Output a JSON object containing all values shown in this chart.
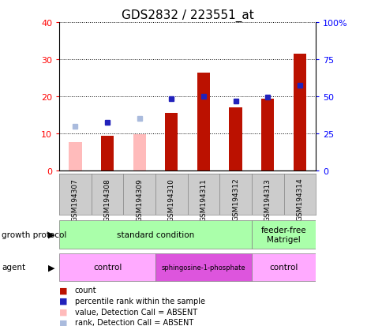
{
  "title": "GDS2832 / 223551_at",
  "samples": [
    "GSM194307",
    "GSM194308",
    "GSM194309",
    "GSM194310",
    "GSM194311",
    "GSM194312",
    "GSM194313",
    "GSM194314"
  ],
  "count_values": [
    null,
    9.5,
    null,
    15.5,
    26.5,
    17.0,
    19.5,
    31.5
  ],
  "count_absent_values": [
    7.8,
    null,
    9.8,
    null,
    null,
    null,
    null,
    null
  ],
  "percentile_values_left": [
    null,
    13.0,
    null,
    19.5,
    20.0,
    18.8,
    19.8,
    23.0
  ],
  "percentile_absent_values_left": [
    12.0,
    null,
    14.0,
    null,
    null,
    null,
    null,
    null
  ],
  "count_color": "#bb1100",
  "count_absent_color": "#ffbbbb",
  "percentile_color": "#2222bb",
  "percentile_absent_color": "#aabbdd",
  "ylim_left": [
    0,
    40
  ],
  "ylim_right": [
    0,
    100
  ],
  "yticks_left": [
    0,
    10,
    20,
    30,
    40
  ],
  "ytick_labels_left": [
    "0",
    "10",
    "20",
    "30",
    "40"
  ],
  "yticks_right": [
    0,
    25,
    50,
    75,
    100
  ],
  "ytick_labels_right": [
    "0",
    "25",
    "50",
    "75",
    "100%"
  ],
  "growth_protocol_groups": [
    {
      "label": "standard condition",
      "start": 0,
      "end": 6,
      "color": "#aaffaa"
    },
    {
      "label": "feeder-free\nMatrigel",
      "start": 6,
      "end": 8,
      "color": "#aaffaa"
    }
  ],
  "agent_groups": [
    {
      "label": "control",
      "start": 0,
      "end": 3,
      "color": "#ffaaff"
    },
    {
      "label": "sphingosine-1-phosphate",
      "start": 3,
      "end": 6,
      "color": "#dd55dd"
    },
    {
      "label": "control",
      "start": 6,
      "end": 8,
      "color": "#ffaaff"
    }
  ],
  "growth_protocol_label": "growth protocol",
  "agent_label": "agent",
  "legend_items": [
    {
      "label": "count",
      "color": "#bb1100"
    },
    {
      "label": "percentile rank within the sample",
      "color": "#2222bb"
    },
    {
      "label": "value, Detection Call = ABSENT",
      "color": "#ffbbbb"
    },
    {
      "label": "rank, Detection Call = ABSENT",
      "color": "#aabbdd"
    }
  ],
  "bar_width": 0.4,
  "marker_size": 5,
  "left_label_color": "red",
  "right_label_color": "blue"
}
